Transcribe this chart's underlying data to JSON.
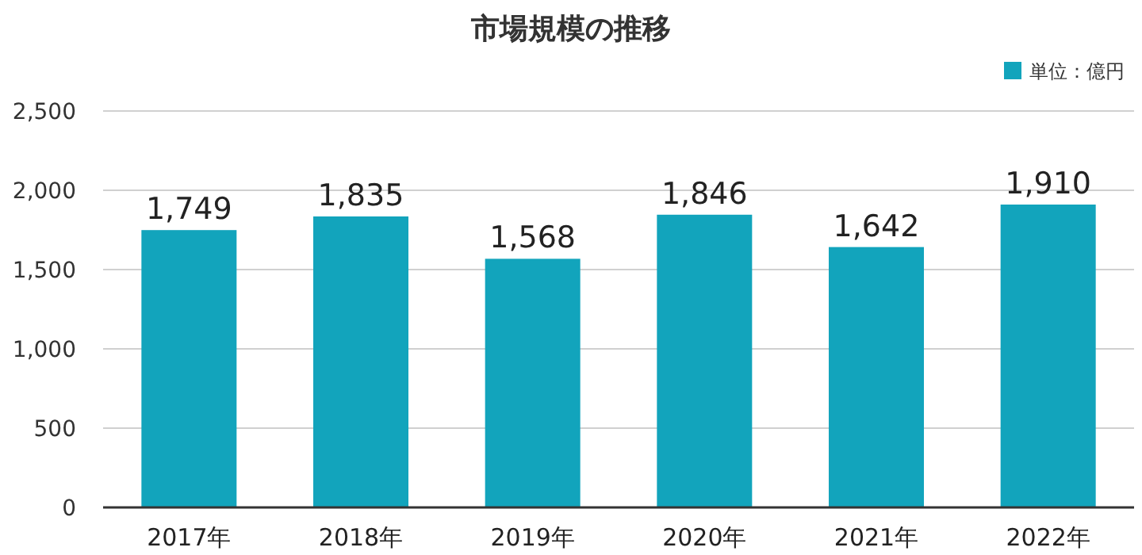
{
  "chart_data": {
    "type": "bar",
    "title": "市場規模の推移",
    "categories": [
      "2017年",
      "2018年",
      "2019年",
      "2020年",
      "2021年",
      "2022年"
    ],
    "series": [
      {
        "name": "単位：億円",
        "color": "#12a4bc",
        "values": [
          1749,
          1835,
          1568,
          1846,
          1642,
          1910
        ],
        "value_labels": [
          "1,749",
          "1,835",
          "1,568",
          "1,846",
          "1,642",
          "1,910"
        ]
      }
    ],
    "ylim": [
      0,
      2500
    ],
    "yticks": [
      0,
      500,
      {
        "value": 1000,
        "label": "1,000"
      },
      {
        "value": 1500,
        "label": "1,500"
      },
      {
        "value": 2000,
        "label": "2,000"
      },
      {
        "value": 2500,
        "label": "2,500"
      }
    ],
    "grid": "y",
    "legend": "top right"
  }
}
